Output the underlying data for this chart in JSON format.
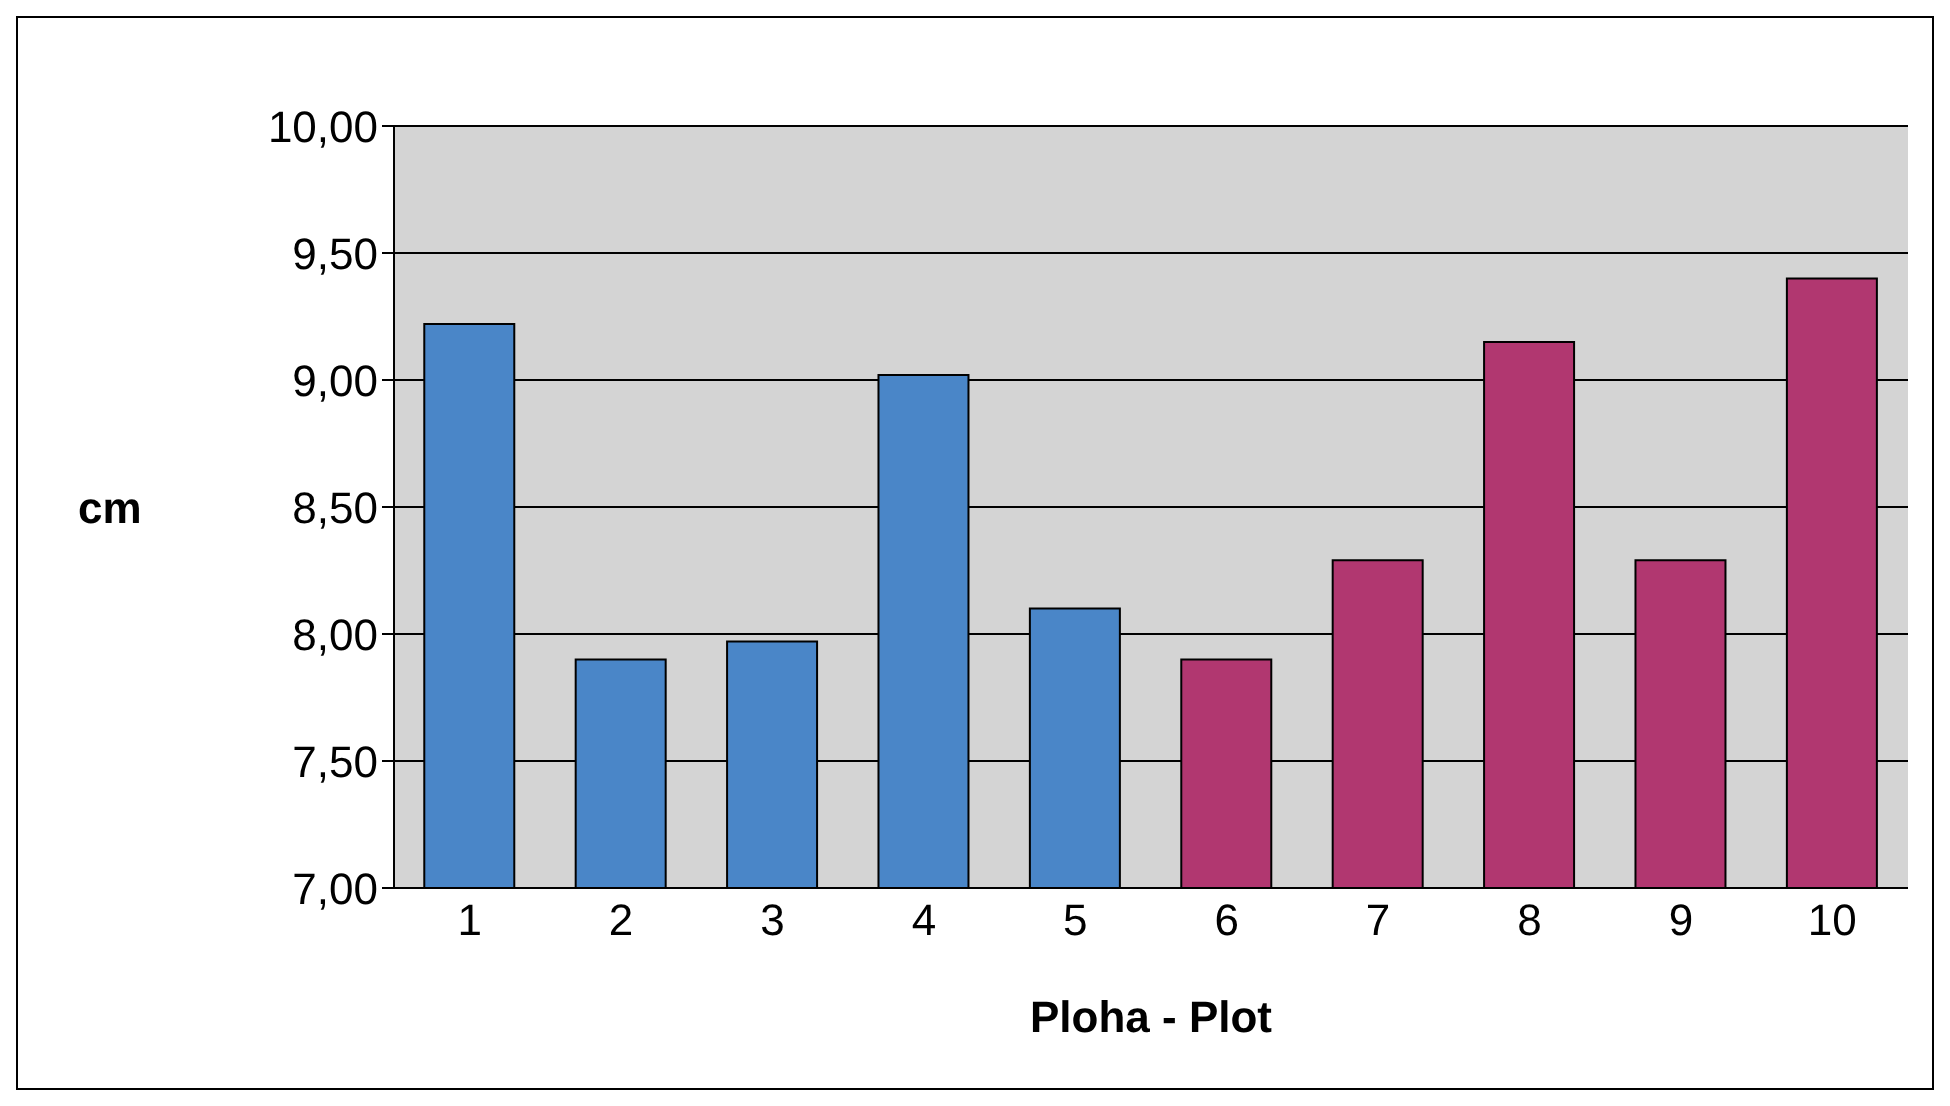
{
  "chart_data": {
    "type": "bar",
    "xlabel": "Ploha - Plot",
    "ylabel": "cm",
    "categories": [
      "1",
      "2",
      "3",
      "4",
      "5",
      "6",
      "7",
      "8",
      "9",
      "10"
    ],
    "values": [
      9.22,
      7.9,
      7.97,
      9.02,
      8.1,
      7.9,
      8.29,
      9.15,
      8.29,
      9.4
    ],
    "colors": [
      "#4a86c8",
      "#4a86c8",
      "#4a86c8",
      "#4a86c8",
      "#4a86c8",
      "#b13770",
      "#b13770",
      "#b13770",
      "#b13770",
      "#b13770"
    ],
    "ylim": [
      7,
      10
    ],
    "yticks": [
      {
        "value": 7,
        "label": "7,00"
      },
      {
        "value": 7.5,
        "label": "7,50"
      },
      {
        "value": 8,
        "label": "8,00"
      },
      {
        "value": 8.5,
        "label": "8,50"
      },
      {
        "value": 9,
        "label": "9,00"
      },
      {
        "value": 9.5,
        "label": "9,50"
      },
      {
        "value": 10,
        "label": "10,00"
      }
    ],
    "grid": "y",
    "legend": false
  }
}
